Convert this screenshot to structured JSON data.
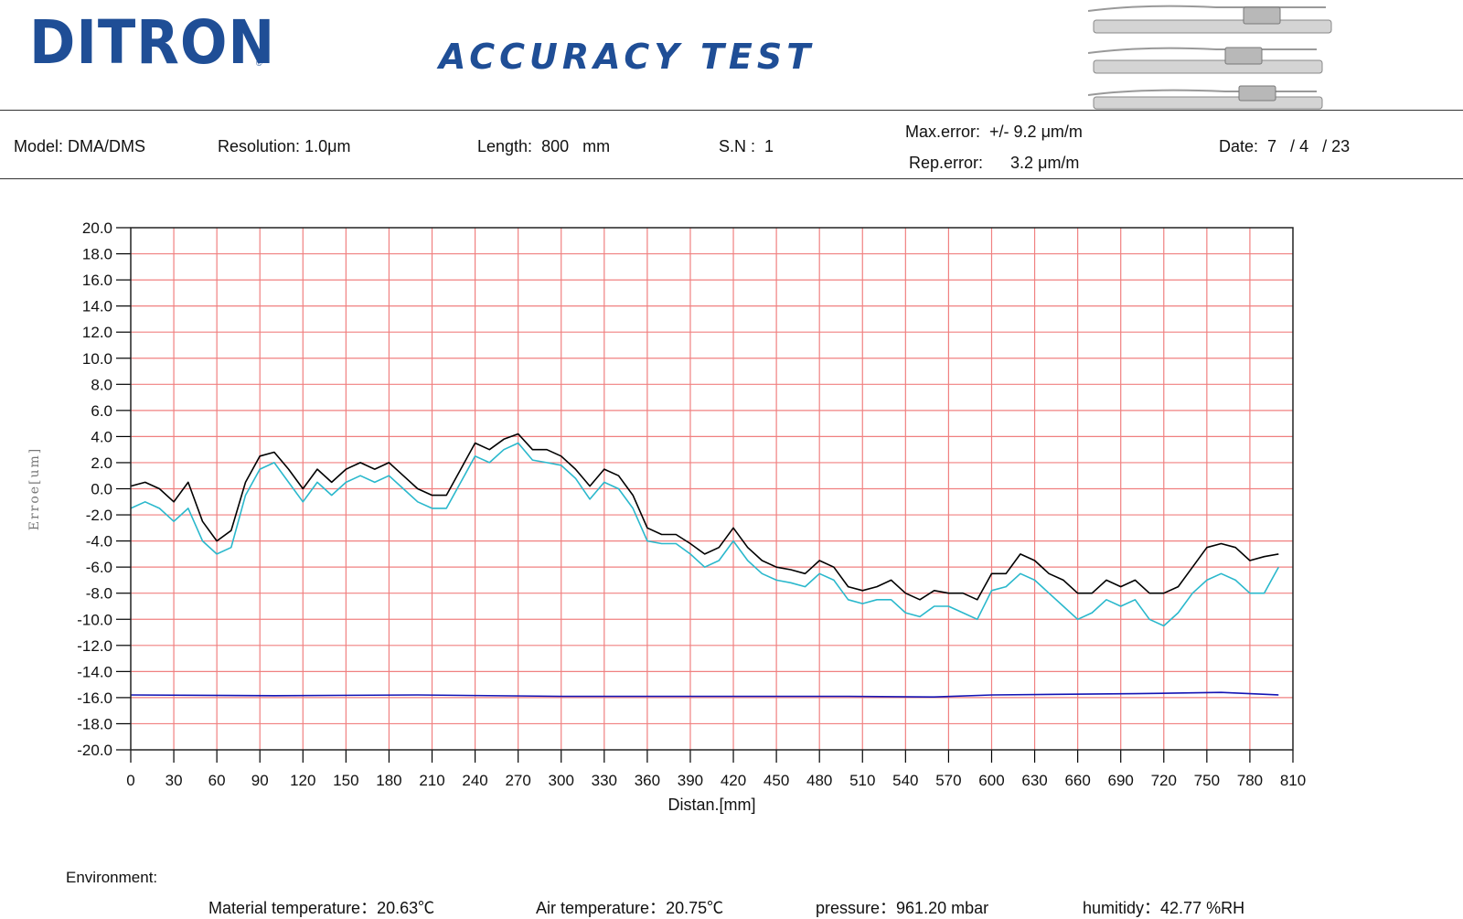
{
  "header": {
    "logo_text": "DITRON",
    "registered_mark": "®",
    "title": "ACCURACY TEST"
  },
  "info": {
    "model_label": "Model:",
    "model_value": "DMA/DMS",
    "resolution_label": "Resolution:",
    "resolution_value": "1.0μm",
    "length_label": "Length:",
    "length_value": "800",
    "length_unit": "mm",
    "sn_label": "S.N :",
    "sn_value": "1",
    "max_error_label": "Max.error:",
    "max_error_value": "+/- 9.2 μm/m",
    "rep_error_label": "Rep.error:",
    "rep_error_value": "3.2 μm/m",
    "date_label": "Date:",
    "date_value": "7   / 4   / 23"
  },
  "environment": {
    "title": "Environment:",
    "material_label": "Material temperature：",
    "material_value": "20.63℃",
    "air_label": "Air temperature：",
    "air_value": "20.75℃",
    "pressure_label": "pressure：",
    "pressure_value": "961.20 mbar",
    "humidity_label": "humitidy：",
    "humidity_value": "42.77 %RH"
  },
  "chart_data": {
    "type": "line",
    "xlabel": "Distan.[mm]",
    "ylabel": "Erroe[um]",
    "xlim": [
      0,
      810
    ],
    "ylim": [
      -20,
      20
    ],
    "xticks": [
      0,
      30,
      60,
      90,
      120,
      150,
      180,
      210,
      240,
      270,
      300,
      330,
      360,
      390,
      420,
      450,
      480,
      510,
      540,
      570,
      600,
      630,
      660,
      690,
      720,
      750,
      780,
      810
    ],
    "yticks": [
      20,
      18,
      16,
      14,
      12,
      10,
      8,
      6,
      4,
      2,
      0,
      -2,
      -4,
      -6,
      -8,
      -10,
      -12,
      -14,
      -16,
      -18,
      -20
    ],
    "ytick_labels": [
      "20.0",
      "18.0",
      "16.0",
      "14.0",
      "12.0",
      "10.0",
      "8.0",
      "6.0",
      "4.0",
      "2.0",
      "0.0",
      "-2.0",
      "-4.0",
      "-6.0",
      "-8.0",
      "-10.0",
      "-12.0",
      "-14.0",
      "-16.0",
      "-18.0",
      "-20.0"
    ],
    "grid": true,
    "colors": {
      "grid": "#f08080",
      "series1": "#000000",
      "series2": "#2ab8cc",
      "series3": "#1414b4"
    },
    "series": [
      {
        "x": [
          0,
          10,
          20,
          30,
          40,
          50,
          60,
          70,
          80,
          90,
          100,
          110,
          120,
          130,
          140,
          150,
          160,
          170,
          180,
          190,
          200,
          210,
          220,
          230,
          240,
          250,
          260,
          270,
          280,
          290,
          300,
          310,
          320,
          330,
          340,
          350,
          360,
          370,
          380,
          390,
          400,
          410,
          420,
          430,
          440,
          450,
          460,
          470,
          480,
          490,
          500,
          510,
          520,
          530,
          540,
          550,
          560,
          570,
          580,
          590,
          600,
          610,
          620,
          630,
          640,
          650,
          660,
          670,
          680,
          690,
          700,
          710,
          720,
          730,
          740,
          750,
          760,
          770,
          780,
          790,
          800
        ],
        "y": [
          0.2,
          0.5,
          0,
          -1,
          0.5,
          -2.5,
          -4,
          -3.2,
          0.5,
          2.5,
          2.8,
          1.5,
          0,
          1.5,
          0.5,
          1.5,
          2,
          1.5,
          2,
          1,
          0,
          -0.5,
          -0.5,
          1.5,
          3.5,
          3,
          3.8,
          4.2,
          3,
          3,
          2.5,
          1.5,
          0.2,
          1.5,
          1,
          -0.5,
          -3,
          -3.5,
          -3.5,
          -4.2,
          -5,
          -4.5,
          -3,
          -4.5,
          -5.5,
          -6,
          -6.2,
          -6.5,
          -5.5,
          -6,
          -7.5,
          -7.8,
          -7.5,
          -7,
          -8,
          -8.5,
          -7.8,
          -8,
          -8,
          -8.5,
          -6.5,
          -6.5,
          -5,
          -5.5,
          -6.5,
          -7,
          -8,
          -8,
          -7,
          -7.5,
          -7,
          -8,
          -8,
          -7.5,
          -6,
          -4.5,
          -4.2,
          -4.5,
          -5.5,
          -5.2,
          -5
        ]
      },
      {
        "x": [
          0,
          10,
          20,
          30,
          40,
          50,
          60,
          70,
          80,
          90,
          100,
          110,
          120,
          130,
          140,
          150,
          160,
          170,
          180,
          190,
          200,
          210,
          220,
          230,
          240,
          250,
          260,
          270,
          280,
          290,
          300,
          310,
          320,
          330,
          340,
          350,
          360,
          370,
          380,
          390,
          400,
          410,
          420,
          430,
          440,
          450,
          460,
          470,
          480,
          490,
          500,
          510,
          520,
          530,
          540,
          550,
          560,
          570,
          580,
          590,
          600,
          610,
          620,
          630,
          640,
          650,
          660,
          670,
          680,
          690,
          700,
          710,
          720,
          730,
          740,
          750,
          760,
          770,
          780,
          790,
          800
        ],
        "y": [
          -1.5,
          -1,
          -1.5,
          -2.5,
          -1.5,
          -4,
          -5,
          -4.5,
          -0.5,
          1.5,
          2,
          0.5,
          -1,
          0.5,
          -0.5,
          0.5,
          1,
          0.5,
          1,
          0,
          -1,
          -1.5,
          -1.5,
          0.5,
          2.5,
          2,
          3,
          3.5,
          2.2,
          2,
          1.8,
          0.8,
          -0.8,
          0.5,
          0,
          -1.5,
          -4,
          -4.2,
          -4.2,
          -5,
          -6,
          -5.5,
          -4,
          -5.5,
          -6.5,
          -7,
          -7.2,
          -7.5,
          -6.5,
          -7,
          -8.5,
          -8.8,
          -8.5,
          -8.5,
          -9.5,
          -9.8,
          -9,
          -9,
          -9.5,
          -10,
          -7.8,
          -7.5,
          -6.5,
          -7,
          -8,
          -9,
          -10,
          -9.5,
          -8.5,
          -9,
          -8.5,
          -10,
          -10.5,
          -9.5,
          -8,
          -7,
          -6.5,
          -7,
          -8,
          -8,
          -6
        ]
      },
      {
        "x": [
          0,
          100,
          200,
          300,
          400,
          500,
          560,
          600,
          700,
          760,
          800
        ],
        "y": [
          -15.8,
          -15.85,
          -15.8,
          -15.9,
          -15.9,
          -15.9,
          -15.95,
          -15.8,
          -15.7,
          -15.6,
          -15.8
        ]
      }
    ]
  }
}
